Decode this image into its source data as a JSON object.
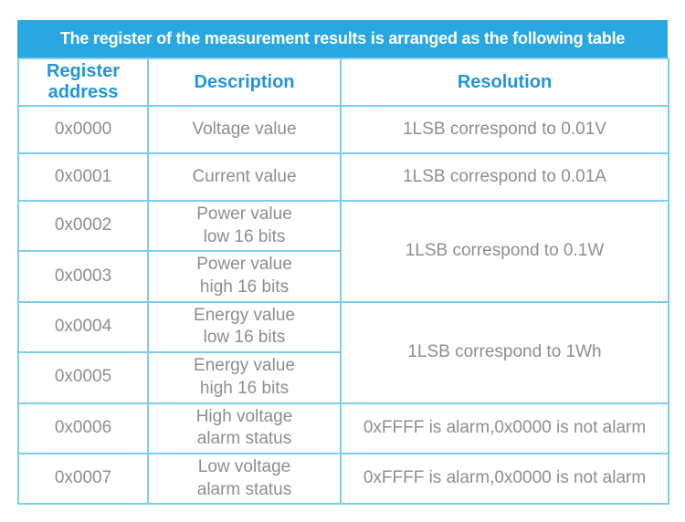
{
  "banner": {
    "title": "The register of the measurement results is arranged as the following table"
  },
  "table": {
    "headers": [
      "Register\naddress",
      "Description",
      "Resolution"
    ],
    "rows": [
      {
        "address": "0x0000",
        "description": "Voltage value",
        "resolution": "1LSB correspond to 0.01V"
      },
      {
        "address": "0x0001",
        "description": "Current value",
        "resolution": "1LSB correspond to 0.01A"
      },
      {
        "address": "0x0002",
        "description": "Power value\nlow 16 bits",
        "resolution": "1LSB correspond to 0.1W"
      },
      {
        "address": "0x0003",
        "description": "Power value\nhigh 16 bits"
      },
      {
        "address": "0x0004",
        "description": "Energy value\nlow 16 bits",
        "resolution": "1LSB correspond to 1Wh"
      },
      {
        "address": "0x0005",
        "description": "Energy value\nhigh 16 bits"
      },
      {
        "address": "0x0006",
        "description": "High voltage\nalarm status",
        "resolution": "0xFFFF is alarm,0x0000 is not alarm"
      },
      {
        "address": "0x0007",
        "description": "Low voltage\nalarm status",
        "resolution": "0xFFFF is alarm,0x0000 is not alarm"
      }
    ]
  },
  "colors": {
    "banner_background": "#29a7e0",
    "banner_text": "#ffffff",
    "header_text": "#2096d8",
    "cell_text": "#8e8e8e",
    "table_border": "#7fcdec"
  }
}
